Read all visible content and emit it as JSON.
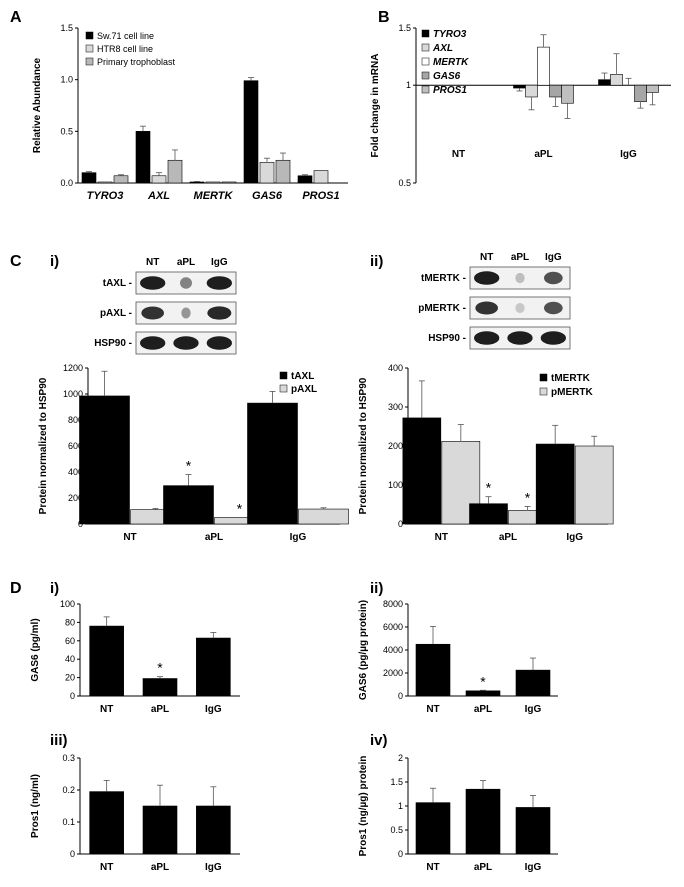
{
  "panel_labels": {
    "A": "A",
    "B": "B",
    "C": "C",
    "D": "D",
    "ci": "i)",
    "cii": "ii)",
    "di": "i)",
    "dii": "ii)",
    "diii": "iii)",
    "div": "iv)"
  },
  "chart_data": [
    {
      "id": "A",
      "type": "bar",
      "categories": [
        "TYRO3",
        "AXL",
        "MERTK",
        "GAS6",
        "PROS1"
      ],
      "ylabel": "Relative Abundance",
      "ylim": [
        0,
        1.5
      ],
      "yticks": [
        "0.0",
        "0.5",
        "1.0",
        "1.5"
      ],
      "series": [
        {
          "name": "Sw.71 cell line",
          "values": [
            0.1,
            0.5,
            0.01,
            0.99,
            0.07
          ],
          "errors": [
            0.01,
            0.05,
            0.005,
            0.03,
            0.01
          ],
          "color": "#000000"
        },
        {
          "name": "HTR8 cell line",
          "values": [
            0.01,
            0.07,
            0.01,
            0.2,
            0.12
          ],
          "errors": [
            0.0,
            0.03,
            0.0,
            0.04,
            0.0
          ],
          "color": "#d9d9d9"
        },
        {
          "name": "Primary trophoblast",
          "values": [
            0.07,
            0.22,
            0.01,
            0.22,
            0.0
          ],
          "errors": [
            0.01,
            0.1,
            0.0,
            0.07,
            0.0
          ],
          "color": "#b8b8b8"
        }
      ],
      "legend_position": "top-left"
    },
    {
      "id": "B",
      "type": "bar",
      "scale": "log",
      "categories": [
        "NT",
        "aPL",
        "IgG"
      ],
      "ylabel": "Fold change in mRNA",
      "ylim": [
        0.5,
        1.5
      ],
      "baseline": 1,
      "yticks": [
        "0.5",
        "1",
        "1.5"
      ],
      "series": [
        {
          "name": "TYRO3",
          "values": [
            1.0,
            0.98,
            1.04
          ],
          "errors": [
            0,
            0.02,
            0.05
          ],
          "color": "#000000"
        },
        {
          "name": "AXL",
          "values": [
            1.0,
            0.92,
            1.08
          ],
          "errors": [
            0,
            0.08,
            0.17
          ],
          "color": "#d9d9d9"
        },
        {
          "name": "MERTK",
          "values": [
            1.0,
            1.31,
            1.0
          ],
          "errors": [
            0,
            0.12,
            0.05
          ],
          "color": "#ffffff"
        },
        {
          "name": "GAS6",
          "values": [
            1.0,
            0.92,
            0.89
          ],
          "errors": [
            0,
            0.06,
            0.04
          ],
          "color": "#a6a6a6"
        },
        {
          "name": "PROS1",
          "values": [
            1.0,
            0.88,
            0.95
          ],
          "errors": [
            0,
            0.09,
            0.08
          ],
          "color": "#bfbfbf"
        }
      ],
      "legend_position": "top-left"
    },
    {
      "id": "Ci",
      "type": "bar",
      "categories": [
        "NT",
        "aPL",
        "IgG"
      ],
      "ylabel": "Protein normalized to HSP90",
      "ylim": [
        0,
        1200
      ],
      "yticks": [
        "0",
        "200",
        "400",
        "600",
        "800",
        "1000",
        "1200"
      ],
      "series": [
        {
          "name": "tAXL",
          "values": [
            985,
            295,
            930
          ],
          "errors": [
            190,
            85,
            90
          ],
          "color": "#000000"
        },
        {
          "name": "pAXL",
          "values": [
            110,
            50,
            115
          ],
          "errors": [
            10,
            0,
            10
          ],
          "color": "#d9d9d9"
        }
      ],
      "significance": [
        {
          "category": "aPL",
          "series": "tAXL",
          "label": "*"
        },
        {
          "category": "aPL",
          "series": "pAXL",
          "label": "*"
        }
      ],
      "legend_position": "top-right"
    },
    {
      "id": "Cii",
      "type": "bar",
      "categories": [
        "NT",
        "aPL",
        "IgG"
      ],
      "ylabel": "Protein normalized to HSP90",
      "ylim": [
        0,
        400
      ],
      "yticks": [
        "0",
        "100",
        "200",
        "300",
        "400"
      ],
      "series": [
        {
          "name": "tMERTK",
          "values": [
            272,
            52,
            205
          ],
          "errors": [
            95,
            18,
            48
          ],
          "color": "#000000"
        },
        {
          "name": "pMERTK",
          "values": [
            212,
            35,
            200
          ],
          "errors": [
            43,
            10,
            25
          ],
          "color": "#d9d9d9"
        }
      ],
      "significance": [
        {
          "category": "aPL",
          "series": "tMERTK",
          "label": "*"
        },
        {
          "category": "aPL",
          "series": "pMERTK",
          "label": "*"
        }
      ],
      "legend_position": "top-right"
    },
    {
      "id": "Di",
      "type": "bar",
      "categories": [
        "NT",
        "aPL",
        "IgG"
      ],
      "ylabel": "GAS6 (pg/ml)",
      "ylim": [
        0,
        100
      ],
      "yticks": [
        "0",
        "20",
        "40",
        "60",
        "80",
        "100"
      ],
      "series": [
        {
          "values": [
            76,
            19,
            63
          ],
          "errors": [
            10,
            2,
            6
          ],
          "color": "#000000"
        }
      ],
      "significance": [
        {
          "category": "aPL",
          "label": "*"
        }
      ]
    },
    {
      "id": "Dii",
      "type": "bar",
      "categories": [
        "NT",
        "aPL",
        "IgG"
      ],
      "ylabel": "GAS6 (pg/µg protein)",
      "ylim": [
        0,
        8000
      ],
      "yticks": [
        "0",
        "2000",
        "4000",
        "6000",
        "8000"
      ],
      "series": [
        {
          "values": [
            4500,
            450,
            2250
          ],
          "errors": [
            1550,
            50,
            1050
          ],
          "color": "#000000"
        }
      ],
      "significance": [
        {
          "category": "aPL",
          "label": "*"
        }
      ]
    },
    {
      "id": "Diii",
      "type": "bar",
      "categories": [
        "NT",
        "aPL",
        "IgG"
      ],
      "ylabel": "Pros1 (ng/ml)",
      "ylim": [
        0,
        0.3
      ],
      "yticks": [
        "0",
        "0.1",
        "0.2",
        "0.3"
      ],
      "series": [
        {
          "values": [
            0.195,
            0.15,
            0.15
          ],
          "errors": [
            0.035,
            0.065,
            0.06
          ],
          "color": "#000000"
        }
      ]
    },
    {
      "id": "Div",
      "type": "bar",
      "categories": [
        "NT",
        "aPL",
        "IgG"
      ],
      "ylabel": "Pros1 (ng/µg) protein",
      "ylim": [
        0,
        2
      ],
      "yticks": [
        "0",
        "0.5",
        "1",
        "1.5",
        "2"
      ],
      "series": [
        {
          "values": [
            1.07,
            1.35,
            0.97
          ],
          "errors": [
            0.3,
            0.18,
            0.25
          ],
          "color": "#000000"
        }
      ]
    }
  ],
  "blots": [
    {
      "id": "Ci",
      "lanes": [
        "NT",
        "aPL",
        "IgG"
      ],
      "rows": [
        "tAXL -",
        "pAXL -",
        "HSP90 -"
      ],
      "bands": [
        [
          0.95,
          0.45,
          0.95
        ],
        [
          0.85,
          0.35,
          0.9
        ],
        [
          0.95,
          0.95,
          0.95
        ]
      ]
    },
    {
      "id": "Cii",
      "lanes": [
        "NT",
        "aPL",
        "IgG"
      ],
      "rows": [
        "tMERTK -",
        "pMERTK -",
        "HSP90 -"
      ],
      "bands": [
        [
          0.95,
          0.15,
          0.7
        ],
        [
          0.85,
          0.1,
          0.7
        ],
        [
          0.95,
          0.95,
          0.95
        ]
      ]
    }
  ]
}
